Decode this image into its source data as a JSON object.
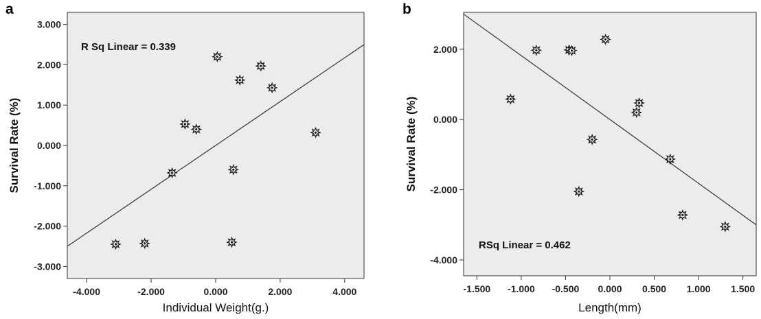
{
  "chart_data": [
    {
      "type": "scatter",
      "panel": "a",
      "xlabel": "Individual Weight(g.)",
      "ylabel": "Survival Rate (%)",
      "xlim": [
        -4.6,
        4.6
      ],
      "ylim": [
        -3.3,
        3.3
      ],
      "x_ticks": [
        -4.0,
        -2.0,
        0.0,
        2.0,
        4.0
      ],
      "x_tick_labels": [
        "-4.000",
        "-2.000",
        "0.000",
        "2.000",
        "4.000"
      ],
      "y_ticks": [
        3.0,
        2.0,
        1.0,
        0.0,
        -1.0,
        -2.0,
        -3.0
      ],
      "y_tick_labels": [
        "3.000",
        "2.000",
        "1.000",
        "0.000",
        "-1.000",
        "-2.000",
        "-3.000"
      ],
      "r_squared_label": "R Sq Linear = 0.339",
      "fit_line": [
        [
          -4.6,
          -2.5
        ],
        [
          4.6,
          2.5
        ]
      ],
      "points": [
        {
          "x": -3.1,
          "y": -2.45
        },
        {
          "x": -2.2,
          "y": -2.43
        },
        {
          "x": -1.35,
          "y": -0.68
        },
        {
          "x": -0.95,
          "y": 0.53
        },
        {
          "x": -0.6,
          "y": 0.4
        },
        {
          "x": 0.05,
          "y": 2.2
        },
        {
          "x": 0.55,
          "y": -0.6
        },
        {
          "x": 0.5,
          "y": -2.4
        },
        {
          "x": 0.75,
          "y": 1.62
        },
        {
          "x": 1.4,
          "y": 1.97
        },
        {
          "x": 1.75,
          "y": 1.43
        },
        {
          "x": 3.1,
          "y": 0.32
        }
      ],
      "grid": false,
      "background": "#ececec"
    },
    {
      "type": "scatter",
      "panel": "b",
      "xlabel": "Length(mm)",
      "ylabel": "Survival Rate (%)",
      "xlim": [
        -1.65,
        1.65
      ],
      "ylim": [
        -4.45,
        3.05
      ],
      "x_ticks": [
        -1.5,
        -1.0,
        -0.5,
        0.0,
        0.5,
        1.0,
        1.5
      ],
      "x_tick_labels": [
        "-1.500",
        "-1.000",
        "-0.500",
        "0.000",
        "0.500",
        "1.000",
        "1.500"
      ],
      "y_ticks": [
        2.0,
        0.0,
        -2.0,
        -4.0
      ],
      "y_tick_labels": [
        "2.000",
        "0.000",
        "-2.000",
        "-4.000"
      ],
      "r_squared_label": "RSq Linear = 0.462",
      "fit_line": [
        [
          -1.65,
          3.0
        ],
        [
          1.65,
          -3.0
        ]
      ],
      "points": [
        {
          "x": -1.12,
          "y": 0.58
        },
        {
          "x": -0.83,
          "y": 1.97
        },
        {
          "x": -0.46,
          "y": 1.98
        },
        {
          "x": -0.43,
          "y": 1.96
        },
        {
          "x": -0.35,
          "y": -2.05
        },
        {
          "x": -0.2,
          "y": -0.57
        },
        {
          "x": -0.05,
          "y": 2.28
        },
        {
          "x": 0.3,
          "y": 0.2
        },
        {
          "x": 0.33,
          "y": 0.47
        },
        {
          "x": 0.68,
          "y": -1.13
        },
        {
          "x": 0.82,
          "y": -2.72
        },
        {
          "x": 1.3,
          "y": -3.05
        }
      ],
      "grid": false,
      "background": "#ececec"
    }
  ]
}
